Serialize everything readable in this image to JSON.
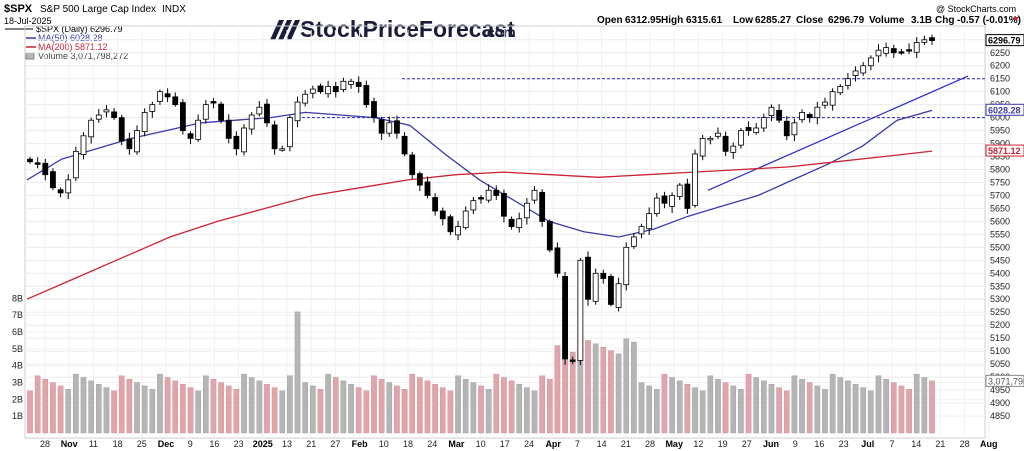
{
  "header": {
    "symbol": "$SPX",
    "name": "S&P 500 Large Cap Index",
    "exchange": "INDX",
    "date": "18-Jul-2025",
    "copyright": "@ StockCharts.com",
    "ohlc": {
      "open_label": "Open",
      "open": "6312.95",
      "high_label": "High",
      "high": "6315.61",
      "low_label": "Low",
      "low": "6285.27",
      "close_label": "Close",
      "close": "6296.79",
      "volume_label": "Volume",
      "volume": "3.1B",
      "chg_label": "Chg",
      "chg": "-0.57 (-0.01%)"
    }
  },
  "logo": {
    "text": "StockPriceForecast",
    "suffix": ".com"
  },
  "legend": [
    {
      "label": "$SPX (Daily) 6296.79",
      "color": "#000000"
    },
    {
      "label": "MA(50) 6028.28",
      "color": "#3a3aa8"
    },
    {
      "label": "MA(200) 5871.12",
      "color": "#cc2233"
    },
    {
      "label": "Volume 3,071,798,272",
      "color": "#888888"
    }
  ],
  "colors": {
    "up": "#ffffff",
    "down": "#000000",
    "ma50": "#3a3aa8",
    "ma200": "#cc2233",
    "trendline": "#2a2ad0",
    "vol_up": "#b5b5b5",
    "vol_down": "#e0a5aa",
    "hline": "#2a2ad0"
  },
  "chart_data": {
    "type": "candlestick",
    "x_axis": "Oct 24, 2024 – Aug 2025 (daily)",
    "x_tick_labels": [
      "28",
      "Nov",
      "11",
      "18",
      "25",
      "Dec",
      "9",
      "16",
      "23",
      "2025",
      "13",
      "21",
      "27",
      "Feb",
      "10",
      "18",
      "24",
      "Mar",
      "10",
      "17",
      "24",
      "Apr",
      "7",
      "14",
      "21",
      "28",
      "May",
      "12",
      "19",
      "27",
      "Jun",
      "9",
      "16",
      "23",
      "Jul",
      "7",
      "14",
      "21",
      "28",
      "Aug"
    ],
    "price_ticks": [
      "6300",
      "6250",
      "6200",
      "6150",
      "6100",
      "6050",
      "6000",
      "5950",
      "5900",
      "5850",
      "5800",
      "5750",
      "5700",
      "5650",
      "5600",
      "5550",
      "5500",
      "5450",
      "5400",
      "5350",
      "5300",
      "5250",
      "5200",
      "5150",
      "5100",
      "5050",
      "5000",
      "4950",
      "4900",
      "4850"
    ],
    "price_ylim": [
      4850,
      6330
    ],
    "volume_ticks": [
      "1B",
      "2B",
      "3B",
      "4B",
      "5B",
      "6B",
      "7B",
      "8B"
    ],
    "volume_ylim_billions": [
      0,
      8.5
    ],
    "last_price_label": "6296.79",
    "ma50_label": "6028.28",
    "ma200_label": "5871.12",
    "volume_label": "3,071,798",
    "horizontal_levels": [
      6150,
      6000
    ],
    "trendline": {
      "from": [
        "2025-05-12",
        5720
      ],
      "to": [
        "2025-07-30",
        6160
      ]
    },
    "ma50": [
      5760,
      5840,
      5880,
      5920,
      5950,
      5980,
      5990,
      6000,
      6020,
      6010,
      6000,
      5970,
      5860,
      5760,
      5680,
      5600,
      5560,
      5540,
      5570,
      5620,
      5660,
      5700,
      5760,
      5820,
      5890,
      5990,
      6028
    ],
    "ma200": [
      5300,
      5380,
      5460,
      5540,
      5600,
      5650,
      5700,
      5730,
      5760,
      5780,
      5790,
      5780,
      5770,
      5780,
      5790,
      5800,
      5810,
      5830,
      5850,
      5871
    ],
    "close_series": [
      5830,
      5820,
      5780,
      5730,
      5710,
      5760,
      5870,
      5930,
      5990,
      6010,
      6030,
      6000,
      5910,
      5880,
      5950,
      6020,
      6050,
      6100,
      6080,
      6050,
      5950,
      5920,
      5990,
      6050,
      6060,
      5990,
      5920,
      5880,
      5960,
      6010,
      6040,
      5980,
      5880,
      5880,
      6000,
      6060,
      6090,
      6110,
      6100,
      6120,
      6100,
      6140,
      6140,
      6120,
      6050,
      6000,
      5940,
      5980,
      5940,
      5860,
      5780,
      5740,
      5700,
      5640,
      5610,
      5560,
      5580,
      5640,
      5680,
      5690,
      5720,
      5700,
      5620,
      5580,
      5610,
      5670,
      5720,
      5600,
      5490,
      5400,
      5070,
      5060,
      5450,
      5300,
      5400,
      5380,
      5280,
      5360,
      5500,
      5540,
      5580,
      5630,
      5690,
      5670,
      5700,
      5740,
      5650,
      5860,
      5920,
      5920,
      5940,
      5870,
      5890,
      5950,
      5950,
      5960,
      6000,
      6040,
      5990,
      5930,
      5980,
      6020,
      6000,
      6040,
      6060,
      6100,
      6120,
      6150,
      6180,
      6200,
      6230,
      6260,
      6270,
      6250,
      6250,
      6260,
      6290,
      6300,
      6297
    ]
  }
}
